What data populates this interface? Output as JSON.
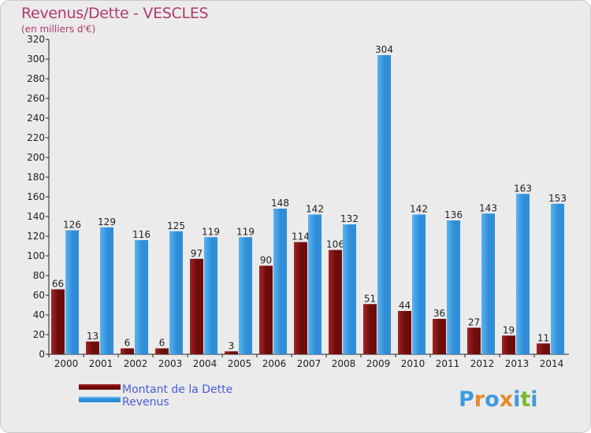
{
  "chart_data": {
    "type": "bar",
    "title": "Revenus/Dette - VESCLES",
    "subtitle": "(en milliers d'€)",
    "categories": [
      "2000",
      "2001",
      "2002",
      "2003",
      "2004",
      "2005",
      "2006",
      "2007",
      "2008",
      "2009",
      "2010",
      "2011",
      "2012",
      "2013",
      "2014"
    ],
    "series": [
      {
        "name": "Montant de la Dette",
        "color": "#7a0f0f",
        "values": [
          66,
          13,
          6,
          6,
          97,
          3,
          90,
          114,
          106,
          51,
          44,
          36,
          27,
          19,
          11
        ]
      },
      {
        "name": "Revenus",
        "color": "#3b9be0",
        "values": [
          126,
          129,
          116,
          125,
          119,
          119,
          148,
          142,
          132,
          304,
          142,
          136,
          143,
          163,
          153
        ]
      }
    ],
    "ylim": [
      0,
      320
    ],
    "ytick_step": 20,
    "grid": false,
    "legend": "bottom-left"
  },
  "logo": {
    "letters": [
      "P",
      "r",
      "o",
      "x",
      "i",
      "t",
      "i"
    ],
    "colors": [
      "#3b9be0",
      "#e58b2a",
      "#3b9be0",
      "#e58b2a",
      "#3b9be0",
      "#7ab82e",
      "#3b9be0"
    ]
  }
}
